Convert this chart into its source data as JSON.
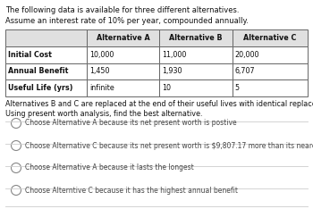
{
  "title_line1": "The following data is available for three different alternatives.",
  "title_line2": "Assume an interest rate of 10% per year, compounded annually.",
  "table_headers": [
    "",
    "Alternative A",
    "Alternative B",
    "Alternative C"
  ],
  "table_rows": [
    [
      "Initial Cost",
      "10,000",
      "11,000",
      "20,000"
    ],
    [
      "Annual Benefit",
      "1,450",
      "1,930",
      "6,707"
    ],
    [
      "Useful Life (yrs)",
      "infinite",
      "10",
      "5"
    ]
  ],
  "note_line1": "Alternatives B and C are replaced at the end of their useful lives with identical replacements.",
  "note_line2": "Using present worth analysis, find the best alternative.",
  "choices": [
    "Choose Alternative A because its net present worth is postive",
    "Choose Alternative C because its net present worth is $9,807.17 more than its nearest competitor",
    "Choose Alternative A because it lasts the longest",
    "Choose Alterntive C because it has the highest annual benefit"
  ],
  "col_splits": [
    0.0,
    0.27,
    0.51,
    0.75,
    1.0
  ],
  "table_header_bg": "#e0e0e0",
  "table_border_color": "#666666",
  "separator_color": "#cccccc",
  "text_color": "#111111",
  "choice_color": "#444444",
  "radio_color": "#888888"
}
